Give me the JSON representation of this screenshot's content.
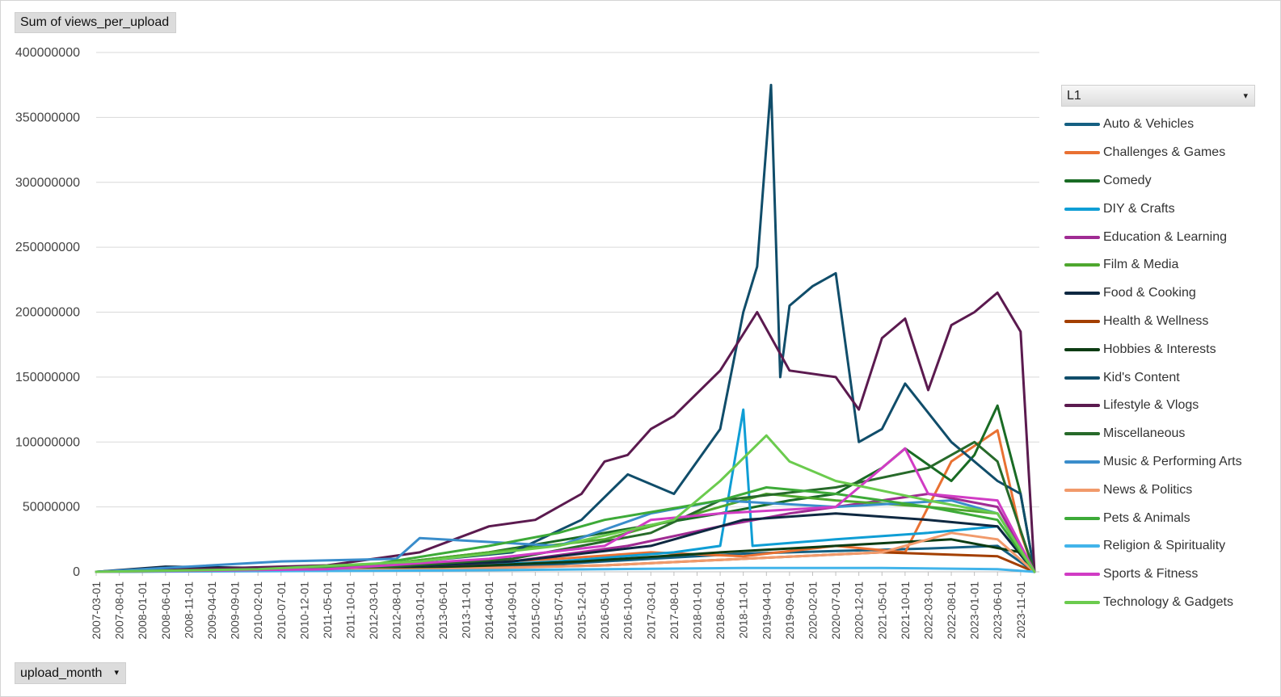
{
  "values_field": {
    "label": "Sum of views_per_upload"
  },
  "axis_field": {
    "label": "upload_month",
    "arrow": "▾"
  },
  "legend_field": {
    "label": "L1",
    "arrow": "▾"
  },
  "chart_data": {
    "type": "line",
    "title": "",
    "xlabel": "upload_month",
    "ylabel": "Sum of views_per_upload",
    "ylim": [
      0,
      400000000
    ],
    "y_ticks": [
      "0",
      "50000000",
      "100000000",
      "150000000",
      "200000000",
      "250000000",
      "300000000",
      "350000000",
      "400000000"
    ],
    "x_tick_labels": [
      "2007-03-01",
      "2007-08-01",
      "2008-01-01",
      "2008-06-01",
      "2008-11-01",
      "2009-04-01",
      "2009-09-01",
      "2010-02-01",
      "2010-07-01",
      "2010-12-01",
      "2011-05-01",
      "2011-10-01",
      "2012-03-01",
      "2012-08-01",
      "2013-01-01",
      "2013-06-01",
      "2013-11-01",
      "2014-04-01",
      "2014-09-01",
      "2015-02-01",
      "2015-07-01",
      "2015-12-01",
      "2016-05-01",
      "2016-10-01",
      "2017-03-01",
      "2017-08-01",
      "2018-01-01",
      "2018-06-01",
      "2018-11-01",
      "2019-04-01",
      "2019-09-01",
      "2020-02-01",
      "2020-07-01",
      "2020-12-01",
      "2021-05-01",
      "2021-10-01",
      "2022-03-01",
      "2022-08-01",
      "2023-01-01",
      "2023-06-01",
      "2023-11-01"
    ],
    "grid": true,
    "legend_position": "right",
    "series": [
      {
        "name": "Auto & Vehicles",
        "color": "#156082",
        "points": [
          [
            "2007-03-01",
            0
          ],
          [
            "2010-12-01",
            1000000
          ],
          [
            "2013-01-01",
            3000000
          ],
          [
            "2015-07-01",
            6000000
          ],
          [
            "2017-03-01",
            10000000
          ],
          [
            "2018-11-01",
            14000000
          ],
          [
            "2020-07-01",
            16000000
          ],
          [
            "2022-03-01",
            18000000
          ],
          [
            "2023-06-01",
            20000000
          ],
          [
            "2024-02-01",
            0
          ]
        ]
      },
      {
        "name": "Challenges & Games",
        "color": "#E97132",
        "points": [
          [
            "2007-03-01",
            0
          ],
          [
            "2011-05-01",
            3000000
          ],
          [
            "2013-01-01",
            5000000
          ],
          [
            "2015-07-01",
            10000000
          ],
          [
            "2017-03-01",
            15000000
          ],
          [
            "2018-11-01",
            12000000
          ],
          [
            "2020-07-01",
            20000000
          ],
          [
            "2021-10-01",
            15000000
          ],
          [
            "2022-08-01",
            85000000
          ],
          [
            "2023-06-01",
            109000000
          ],
          [
            "2023-11-01",
            30000000
          ],
          [
            "2024-02-01",
            0
          ]
        ]
      },
      {
        "name": "Comedy",
        "color": "#196B24",
        "points": [
          [
            "2007-03-01",
            0
          ],
          [
            "2011-10-01",
            3000000
          ],
          [
            "2014-04-01",
            15000000
          ],
          [
            "2016-05-01",
            30000000
          ],
          [
            "2018-06-01",
            45000000
          ],
          [
            "2019-09-01",
            55000000
          ],
          [
            "2020-07-01",
            60000000
          ],
          [
            "2021-05-01",
            80000000
          ],
          [
            "2021-10-01",
            95000000
          ],
          [
            "2022-08-01",
            70000000
          ],
          [
            "2023-01-01",
            90000000
          ],
          [
            "2023-06-01",
            128000000
          ],
          [
            "2023-11-01",
            60000000
          ],
          [
            "2024-02-01",
            0
          ]
        ]
      },
      {
        "name": "DIY & Crafts",
        "color": "#0F9ED5",
        "points": [
          [
            "2007-03-01",
            0
          ],
          [
            "2012-08-01",
            2000000
          ],
          [
            "2015-07-01",
            8000000
          ],
          [
            "2017-08-01",
            15000000
          ],
          [
            "2018-06-01",
            20000000
          ],
          [
            "2018-11-01",
            125000000
          ],
          [
            "2019-01-01",
            20000000
          ],
          [
            "2020-07-01",
            25000000
          ],
          [
            "2022-03-01",
            30000000
          ],
          [
            "2023-06-01",
            35000000
          ],
          [
            "2024-02-01",
            0
          ]
        ]
      },
      {
        "name": "Education & Learning",
        "color": "#A02B93",
        "points": [
          [
            "2007-03-01",
            0
          ],
          [
            "2012-03-01",
            2000000
          ],
          [
            "2014-09-01",
            8000000
          ],
          [
            "2016-10-01",
            20000000
          ],
          [
            "2018-06-01",
            35000000
          ],
          [
            "2019-09-01",
            45000000
          ],
          [
            "2021-05-01",
            55000000
          ],
          [
            "2022-03-01",
            60000000
          ],
          [
            "2023-06-01",
            50000000
          ],
          [
            "2024-02-01",
            0
          ]
        ]
      },
      {
        "name": "Film & Media",
        "color": "#4EA72E",
        "points": [
          [
            "2007-03-01",
            0
          ],
          [
            "2009-09-01",
            3000000
          ],
          [
            "2012-03-01",
            5000000
          ],
          [
            "2014-04-01",
            15000000
          ],
          [
            "2016-05-01",
            25000000
          ],
          [
            "2018-06-01",
            50000000
          ],
          [
            "2019-04-01",
            60000000
          ],
          [
            "2020-07-01",
            55000000
          ],
          [
            "2022-03-01",
            50000000
          ],
          [
            "2023-06-01",
            45000000
          ],
          [
            "2024-02-01",
            0
          ]
        ]
      },
      {
        "name": "Food & Cooking",
        "color": "#0E2841",
        "points": [
          [
            "2007-03-01",
            0
          ],
          [
            "2008-06-01",
            4000000
          ],
          [
            "2011-10-01",
            2000000
          ],
          [
            "2014-09-01",
            8000000
          ],
          [
            "2017-03-01",
            20000000
          ],
          [
            "2018-11-01",
            40000000
          ],
          [
            "2020-07-01",
            45000000
          ],
          [
            "2022-03-01",
            40000000
          ],
          [
            "2023-06-01",
            35000000
          ],
          [
            "2024-02-01",
            0
          ]
        ]
      },
      {
        "name": "Health & Wellness",
        "color": "#A33F00",
        "points": [
          [
            "2007-03-01",
            0
          ],
          [
            "2013-01-01",
            2000000
          ],
          [
            "2016-05-01",
            5000000
          ],
          [
            "2018-11-01",
            10000000
          ],
          [
            "2021-05-01",
            15000000
          ],
          [
            "2023-06-01",
            12000000
          ],
          [
            "2024-02-01",
            0
          ]
        ]
      },
      {
        "name": "Hobbies & Interests",
        "color": "#0C3C13",
        "points": [
          [
            "2007-03-01",
            0
          ],
          [
            "2012-08-01",
            2000000
          ],
          [
            "2015-12-01",
            8000000
          ],
          [
            "2018-06-01",
            15000000
          ],
          [
            "2020-07-01",
            20000000
          ],
          [
            "2022-08-01",
            25000000
          ],
          [
            "2023-11-01",
            15000000
          ],
          [
            "2024-02-01",
            0
          ]
        ]
      },
      {
        "name": "Kid's Content",
        "color": "#104D6A",
        "points": [
          [
            "2007-03-01",
            0
          ],
          [
            "2011-10-01",
            3000000
          ],
          [
            "2014-09-01",
            15000000
          ],
          [
            "2015-12-01",
            40000000
          ],
          [
            "2016-10-01",
            75000000
          ],
          [
            "2017-08-01",
            60000000
          ],
          [
            "2018-06-01",
            110000000
          ],
          [
            "2018-11-01",
            200000000
          ],
          [
            "2019-02-01",
            235000000
          ],
          [
            "2019-05-01",
            375000000
          ],
          [
            "2019-07-01",
            150000000
          ],
          [
            "2019-09-01",
            205000000
          ],
          [
            "2020-02-01",
            220000000
          ],
          [
            "2020-07-01",
            230000000
          ],
          [
            "2020-12-01",
            100000000
          ],
          [
            "2021-05-01",
            110000000
          ],
          [
            "2021-10-01",
            145000000
          ],
          [
            "2022-08-01",
            100000000
          ],
          [
            "2023-06-01",
            70000000
          ],
          [
            "2023-11-01",
            60000000
          ],
          [
            "2024-02-01",
            0
          ]
        ]
      },
      {
        "name": "Lifestyle & Vlogs",
        "color": "#5B1A4F",
        "points": [
          [
            "2007-03-01",
            0
          ],
          [
            "2009-09-01",
            3000000
          ],
          [
            "2011-05-01",
            5000000
          ],
          [
            "2013-01-01",
            15000000
          ],
          [
            "2014-04-01",
            35000000
          ],
          [
            "2015-02-01",
            40000000
          ],
          [
            "2015-12-01",
            60000000
          ],
          [
            "2016-05-01",
            85000000
          ],
          [
            "2016-10-01",
            90000000
          ],
          [
            "2017-03-01",
            110000000
          ],
          [
            "2017-08-01",
            120000000
          ],
          [
            "2018-06-01",
            155000000
          ],
          [
            "2019-02-01",
            200000000
          ],
          [
            "2019-09-01",
            155000000
          ],
          [
            "2020-07-01",
            150000000
          ],
          [
            "2020-12-01",
            125000000
          ],
          [
            "2021-05-01",
            180000000
          ],
          [
            "2021-10-01",
            195000000
          ],
          [
            "2022-03-01",
            140000000
          ],
          [
            "2022-08-01",
            190000000
          ],
          [
            "2023-01-01",
            200000000
          ],
          [
            "2023-06-01",
            215000000
          ],
          [
            "2023-11-01",
            185000000
          ],
          [
            "2024-02-01",
            0
          ]
        ]
      },
      {
        "name": "Miscellaneous",
        "color": "#276A2A",
        "points": [
          [
            "2007-03-01",
            0
          ],
          [
            "2012-03-01",
            3000000
          ],
          [
            "2014-09-01",
            10000000
          ],
          [
            "2017-03-01",
            30000000
          ],
          [
            "2018-06-01",
            55000000
          ],
          [
            "2020-07-01",
            65000000
          ],
          [
            "2022-03-01",
            80000000
          ],
          [
            "2023-01-01",
            100000000
          ],
          [
            "2023-06-01",
            85000000
          ],
          [
            "2024-02-01",
            0
          ]
        ]
      },
      {
        "name": "Music & Performing Arts",
        "color": "#3A8DCB",
        "points": [
          [
            "2007-03-01",
            0
          ],
          [
            "2010-07-01",
            8000000
          ],
          [
            "2012-08-01",
            10000000
          ],
          [
            "2013-01-01",
            26000000
          ],
          [
            "2015-07-01",
            20000000
          ],
          [
            "2017-03-01",
            45000000
          ],
          [
            "2018-06-01",
            55000000
          ],
          [
            "2020-07-01",
            50000000
          ],
          [
            "2022-08-01",
            55000000
          ],
          [
            "2023-06-01",
            45000000
          ],
          [
            "2024-02-01",
            0
          ]
        ]
      },
      {
        "name": "News & Politics",
        "color": "#F19A6B",
        "points": [
          [
            "2007-03-01",
            0
          ],
          [
            "2013-06-01",
            2000000
          ],
          [
            "2016-05-01",
            5000000
          ],
          [
            "2018-11-01",
            10000000
          ],
          [
            "2021-05-01",
            15000000
          ],
          [
            "2022-08-01",
            30000000
          ],
          [
            "2023-06-01",
            25000000
          ],
          [
            "2024-02-01",
            0
          ]
        ]
      },
      {
        "name": "Pets & Animals",
        "color": "#3DAA38",
        "points": [
          [
            "2007-03-01",
            0
          ],
          [
            "2011-10-01",
            3000000
          ],
          [
            "2014-04-01",
            20000000
          ],
          [
            "2015-07-01",
            30000000
          ],
          [
            "2016-05-01",
            40000000
          ],
          [
            "2018-06-01",
            55000000
          ],
          [
            "2019-04-01",
            65000000
          ],
          [
            "2020-07-01",
            60000000
          ],
          [
            "2022-03-01",
            50000000
          ],
          [
            "2023-06-01",
            40000000
          ],
          [
            "2024-02-01",
            0
          ]
        ]
      },
      {
        "name": "Religion & Spirituality",
        "color": "#42B4EA",
        "points": [
          [
            "2007-03-01",
            0
          ],
          [
            "2013-06-01",
            1000000
          ],
          [
            "2016-05-01",
            2000000
          ],
          [
            "2018-11-01",
            3000000
          ],
          [
            "2021-05-01",
            3000000
          ],
          [
            "2023-06-01",
            2000000
          ],
          [
            "2024-02-01",
            0
          ]
        ]
      },
      {
        "name": "Sports & Fitness",
        "color": "#D13CC4",
        "points": [
          [
            "2007-03-01",
            0
          ],
          [
            "2011-05-01",
            2000000
          ],
          [
            "2014-04-01",
            10000000
          ],
          [
            "2016-05-01",
            20000000
          ],
          [
            "2017-03-01",
            40000000
          ],
          [
            "2018-06-01",
            45000000
          ],
          [
            "2020-07-01",
            50000000
          ],
          [
            "2021-10-01",
            95000000
          ],
          [
            "2022-03-01",
            60000000
          ],
          [
            "2023-06-01",
            55000000
          ],
          [
            "2024-02-01",
            0
          ]
        ]
      },
      {
        "name": "Technology & Gadgets",
        "color": "#6BCB4E",
        "points": [
          [
            "2007-03-01",
            0
          ],
          [
            "2010-02-01",
            2000000
          ],
          [
            "2013-01-01",
            8000000
          ],
          [
            "2015-07-01",
            20000000
          ],
          [
            "2017-08-01",
            40000000
          ],
          [
            "2018-06-01",
            70000000
          ],
          [
            "2019-04-01",
            105000000
          ],
          [
            "2019-09-01",
            85000000
          ],
          [
            "2020-07-01",
            70000000
          ],
          [
            "2022-03-01",
            55000000
          ],
          [
            "2023-06-01",
            45000000
          ],
          [
            "2024-02-01",
            0
          ]
        ]
      }
    ]
  }
}
